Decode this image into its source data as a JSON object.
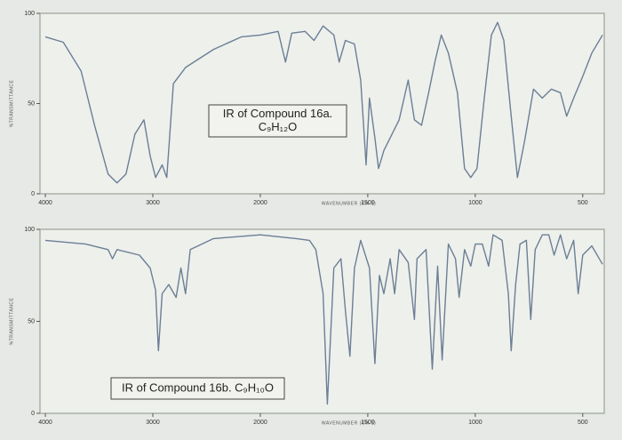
{
  "chart_data": [
    {
      "type": "line",
      "annotations": [
        "IR of Compound 16a.",
        "C₉H₁₂O"
      ],
      "x_label": "WAVENUMBER (CM-1)",
      "y_label": "%TRANSMITTANCE",
      "x": [
        4000,
        3833,
        3667,
        3542,
        3417,
        3333,
        3250,
        3167,
        3083,
        3025,
        2974,
        2913,
        2870,
        2809,
        2696,
        2435,
        2174,
        2000,
        1917,
        1883,
        1854,
        1792,
        1750,
        1708,
        1658,
        1633,
        1604,
        1562,
        1533,
        1508,
        1492,
        1467,
        1450,
        1425,
        1396,
        1354,
        1312,
        1283,
        1250,
        1217,
        1188,
        1158,
        1125,
        1083,
        1050,
        1021,
        992,
        958,
        925,
        896,
        867,
        833,
        804,
        771,
        729,
        688,
        646,
        604,
        575,
        542,
        500,
        458,
        408
      ],
      "values": [
        87,
        84,
        68,
        38,
        11,
        6,
        11,
        33,
        41,
        21,
        9,
        16,
        9,
        61,
        70,
        80,
        87,
        88,
        90,
        73,
        89,
        90,
        85,
        93,
        88,
        73,
        85,
        83,
        63,
        16,
        53,
        31,
        14,
        24,
        31,
        41,
        63,
        41,
        38,
        56,
        73,
        88,
        78,
        56,
        14,
        9,
        14,
        53,
        88,
        95,
        85,
        43,
        9,
        29,
        58,
        53,
        58,
        56,
        43,
        53,
        65,
        78,
        88
      ],
      "color": "#6b7f95",
      "xlim": [
        4050,
        400
      ],
      "xticks": [
        4000,
        3000,
        2000,
        1500,
        1000,
        500
      ],
      "ylim": [
        0,
        100
      ],
      "yticks": [
        0,
        50,
        100
      ]
    },
    {
      "type": "line",
      "annotations": [
        "IR of Compound 16b. C₉H₁₀O"
      ],
      "x_label": "WAVENUMBER (CM-1)",
      "y_label": "%TRANSMITTANCE",
      "x": [
        4000,
        3625,
        3417,
        3375,
        3333,
        3125,
        3025,
        2974,
        2948,
        2913,
        2852,
        2783,
        2739,
        2696,
        2652,
        2435,
        2000,
        1833,
        1771,
        1742,
        1708,
        1688,
        1658,
        1625,
        1604,
        1583,
        1562,
        1533,
        1492,
        1467,
        1446,
        1425,
        1396,
        1375,
        1354,
        1312,
        1283,
        1271,
        1229,
        1200,
        1175,
        1154,
        1125,
        1092,
        1075,
        1050,
        1021,
        1000,
        967,
        938,
        917,
        875,
        846,
        833,
        812,
        792,
        762,
        742,
        721,
        688,
        658,
        633,
        604,
        575,
        542,
        521,
        500,
        458,
        408
      ],
      "values": [
        94,
        92,
        89,
        84,
        89,
        86,
        79,
        67,
        34,
        65,
        70,
        63,
        79,
        65,
        89,
        95,
        97,
        95,
        94,
        89,
        65,
        5,
        79,
        84,
        56,
        31,
        79,
        94,
        79,
        27,
        75,
        65,
        84,
        65,
        89,
        82,
        51,
        84,
        89,
        24,
        80,
        29,
        92,
        84,
        63,
        89,
        80,
        92,
        92,
        80,
        97,
        94,
        65,
        34,
        70,
        92,
        94,
        51,
        89,
        97,
        97,
        86,
        97,
        84,
        94,
        65,
        86,
        91,
        81
      ],
      "color": "#6b7f95",
      "xlim": [
        4050,
        400
      ],
      "xticks": [
        4000,
        3000,
        2000,
        1500,
        1000,
        500
      ],
      "ylim": [
        0,
        100
      ],
      "yticks": [
        0,
        50,
        100
      ]
    }
  ]
}
